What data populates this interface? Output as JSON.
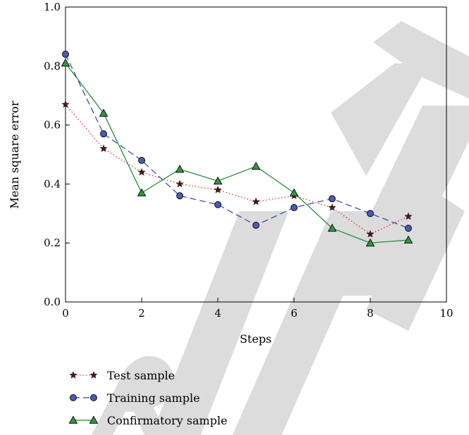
{
  "chart_data": {
    "type": "line",
    "xlabel": "Steps",
    "ylabel": "Mean square error",
    "xlim": [
      0,
      10
    ],
    "ylim": [
      0,
      1.0
    ],
    "xticks": [
      "0",
      "2",
      "4",
      "6",
      "8",
      "10"
    ],
    "yticks": [
      "0.0",
      "0.2",
      "0.4",
      "0.6",
      "0.8",
      "1.0"
    ],
    "grid": false,
    "legend_position": "bottom-left, below plot",
    "watermark": "RETRACTED",
    "series": [
      {
        "name": "Test sample",
        "color": "#cc2222",
        "marker": "star",
        "line_style": "dotted",
        "x": [
          0,
          1,
          2,
          3,
          4,
          5,
          6,
          7,
          8,
          9
        ],
        "y": [
          0.67,
          0.52,
          0.44,
          0.4,
          0.38,
          0.34,
          0.36,
          0.32,
          0.23,
          0.29
        ]
      },
      {
        "name": "Training sample",
        "color": "#3344aa",
        "marker": "circle",
        "line_style": "dashed",
        "x": [
          0,
          1,
          2,
          3,
          4,
          5,
          6,
          7,
          8,
          9
        ],
        "y": [
          0.84,
          0.57,
          0.48,
          0.36,
          0.33,
          0.26,
          0.32,
          0.35,
          0.3,
          0.25
        ]
      },
      {
        "name": "Confirmatory sample",
        "color": "#1a8a2a",
        "marker": "triangle",
        "line_style": "solid",
        "x": [
          0,
          1,
          2,
          3,
          4,
          5,
          6,
          7,
          8,
          9
        ],
        "y": [
          0.81,
          0.64,
          0.37,
          0.45,
          0.41,
          0.46,
          0.37,
          0.25,
          0.2,
          0.21
        ]
      }
    ]
  }
}
